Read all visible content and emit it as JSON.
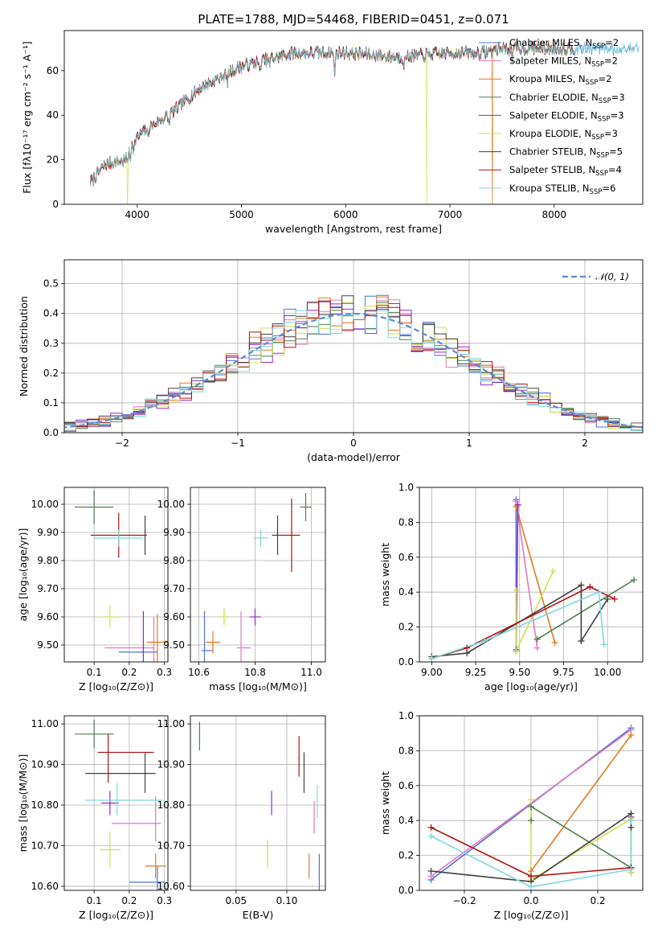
{
  "title": "PLATE=1788, MJD=54468, FIBERID=0451, z=0.071",
  "models": [
    {
      "name": "Chabrier MILES",
      "n_ssp": 2,
      "color": "#4a72d6"
    },
    {
      "name": "Salpeter MILES",
      "n_ssp": 2,
      "color": "#e377c2"
    },
    {
      "name": "Kroupa MILES",
      "n_ssp": 2,
      "color": "#e07b1e"
    },
    {
      "name": "Chabrier ELODIE",
      "n_ssp": 3,
      "color": "#4f7f4f"
    },
    {
      "name": "Salpeter ELODIE",
      "n_ssp": 3,
      "color": "#8e2bd1"
    },
    {
      "name": "Kroupa ELODIE",
      "n_ssp": 3,
      "color": "#cfe050"
    },
    {
      "name": "Chabrier STELIB",
      "n_ssp": 5,
      "color": "#404040"
    },
    {
      "name": "Salpeter STELIB",
      "n_ssp": 4,
      "color": "#b01010"
    },
    {
      "name": "Kroupa STELIB",
      "n_ssp": 6,
      "color": "#7fd8dd"
    }
  ],
  "legend_labels": [
    {
      "prefix": "Chabrier MILES, N",
      "sub": "SSP",
      "suffix": "=2"
    },
    {
      "prefix": "Salpeter MILES, N",
      "sub": "SSP",
      "suffix": "=2"
    },
    {
      "prefix": "Kroupa MILES, N",
      "sub": "SSP",
      "suffix": "=2"
    },
    {
      "prefix": "Chabrier ELODIE, N",
      "sub": "SSP",
      "suffix": "=3"
    },
    {
      "prefix": "Salpeter ELODIE, N",
      "sub": "SSP",
      "suffix": "=3"
    },
    {
      "prefix": "Kroupa ELODIE, N",
      "sub": "SSP",
      "suffix": "=3"
    },
    {
      "prefix": "Chabrier STELIB, N",
      "sub": "SSP",
      "suffix": "=5"
    },
    {
      "prefix": "Salpeter STELIB, N",
      "sub": "SSP",
      "suffix": "=4"
    },
    {
      "prefix": "Kroupa STELIB, N",
      "sub": "SSP",
      "suffix": "=6"
    }
  ],
  "chart_data": [
    {
      "id": "spectrum",
      "type": "line",
      "xlabel": "wavelength [Angstrom, rest frame]",
      "ylabel": "Flux [fλ10⁻¹⁷ erg cm⁻² s⁻¹ A⁻¹]",
      "xlim": [
        3300,
        8850
      ],
      "ylim": [
        0,
        78
      ],
      "xticks": [
        4000,
        5000,
        6000,
        7000,
        8000
      ],
      "yticks": [
        0,
        20,
        40,
        60
      ],
      "continuum": {
        "x": [
          3550,
          3700,
          3900,
          3950,
          4100,
          4300,
          4600,
          5000,
          5500,
          6000,
          6500,
          7000,
          7300,
          7500
        ],
        "y": [
          10,
          18,
          20,
          28,
          34,
          40,
          52,
          62,
          68,
          68,
          66,
          68,
          68,
          70
        ]
      },
      "glitches": [
        {
          "model": 5,
          "x": 3905
        },
        {
          "model": 5,
          "x": 6775
        },
        {
          "model": 2,
          "x": 7405
        }
      ]
    },
    {
      "id": "residual_hist",
      "type": "bar",
      "xlabel": "(data-model)/error",
      "ylabel": "Normed distribution",
      "xlim": [
        -2.5,
        2.5
      ],
      "ylim": [
        0,
        0.58
      ],
      "xticks": [
        -2,
        -1,
        0,
        1,
        2
      ],
      "yticks": [
        0.0,
        0.1,
        0.2,
        0.3,
        0.4,
        0.5
      ],
      "bin_width": 0.1,
      "reference": {
        "name": "𝒩(0, 1)",
        "mean": 0,
        "sigma": 1,
        "color": "#5b8bd6"
      }
    },
    {
      "id": "age_vs_Z",
      "type": "scatter",
      "xlabel": "Z [log₁₀(Z/Z⊙)]",
      "ylabel": "age  [log₁₀(age/yr)]",
      "xlim": [
        0.015,
        0.31
      ],
      "ylim": [
        9.44,
        10.06
      ],
      "xticks": [
        0.1,
        0.2,
        0.3
      ],
      "yticks": [
        9.5,
        9.6,
        9.7,
        9.8,
        9.9,
        10.0
      ],
      "points": [
        {
          "model": 0,
          "x": 0.225,
          "y": 9.475,
          "xerr": 0.055,
          "yerr": 0
        },
        {
          "model": 1,
          "x": 0.2,
          "y": 9.49,
          "xerr": 0.07,
          "yerr": 0
        },
        {
          "model": 1,
          "x": 0.27,
          "y": 9.5,
          "xerr": 0,
          "yerr": 0.1
        },
        {
          "model": 2,
          "x": 0.28,
          "y": 9.51,
          "xerr": 0.03,
          "yerr": 0.1
        },
        {
          "model": 3,
          "x": 0.1,
          "y": 9.99,
          "xerr": 0.055,
          "yerr": 0.06
        },
        {
          "model": 4,
          "x": 0.24,
          "y": 9.52,
          "xerr": 0,
          "yerr": 0.1
        },
        {
          "model": 5,
          "x": 0.145,
          "y": 9.6,
          "xerr": 0.025,
          "yerr": 0.04
        },
        {
          "model": 6,
          "x": 0.245,
          "y": 9.89,
          "xerr": 0,
          "yerr": 0.07
        },
        {
          "model": 7,
          "x": 0.17,
          "y": 9.89,
          "xerr": 0.08,
          "yerr": 0.08
        },
        {
          "model": 8,
          "x": 0.17,
          "y": 9.88,
          "xerr": 0.07,
          "yerr": 0.03
        }
      ]
    },
    {
      "id": "age_vs_mass",
      "type": "scatter",
      "xlabel": "mass [log₁₀(M/M⊙)]",
      "ylabel": "",
      "xlim": [
        10.57,
        11.05
      ],
      "ylim": [
        9.44,
        10.06
      ],
      "xticks": [
        10.6,
        10.8,
        11.0
      ],
      "yticks": [
        9.5,
        9.6,
        9.7,
        9.8,
        9.9,
        10.0
      ],
      "points": [
        {
          "model": 0,
          "x": 10.62,
          "y": 9.53,
          "xerr": 0,
          "yerr": 0.09
        },
        {
          "model": 0,
          "x": 10.63,
          "y": 9.48,
          "xerr": 0.02,
          "yerr": 0
        },
        {
          "model": 1,
          "x": 10.75,
          "y": 9.53,
          "xerr": 0,
          "yerr": 0.09
        },
        {
          "model": 1,
          "x": 10.76,
          "y": 9.49,
          "xerr": 0.025,
          "yerr": 0
        },
        {
          "model": 2,
          "x": 10.65,
          "y": 9.51,
          "xerr": 0.025,
          "yerr": 0.04
        },
        {
          "model": 3,
          "x": 10.98,
          "y": 9.99,
          "xerr": 0.02,
          "yerr": 0.05
        },
        {
          "model": 4,
          "x": 10.8,
          "y": 9.6,
          "xerr": 0.02,
          "yerr": 0.03
        },
        {
          "model": 5,
          "x": 10.69,
          "y": 9.6,
          "xerr": 0.02,
          "yerr": 0.03
        },
        {
          "model": 6,
          "x": 10.88,
          "y": 9.89,
          "xerr": 0.02,
          "yerr": 0.07
        },
        {
          "model": 7,
          "x": 10.93,
          "y": 9.89,
          "xerr": 0.03,
          "yerr": 0.13
        },
        {
          "model": 8,
          "x": 10.82,
          "y": 9.88,
          "xerr": 0.025,
          "yerr": 0.03
        }
      ]
    },
    {
      "id": "weight_vs_age",
      "type": "line",
      "xlabel": "age  [log₁₀(age/yr)]",
      "ylabel": "mass weight",
      "xlim": [
        8.93,
        10.2
      ],
      "ylim": [
        0,
        1
      ],
      "xticks": [
        9.0,
        9.25,
        9.5,
        9.75,
        10.0
      ],
      "yticks": [
        0.0,
        0.2,
        0.4,
        0.6,
        0.8,
        1.0
      ],
      "series": [
        {
          "model": 0,
          "x": [
            9.48,
            9.48
          ],
          "y": [
            0.93,
            0.07
          ]
        },
        {
          "model": 1,
          "x": [
            9.48,
            9.6
          ],
          "y": [
            0.92,
            0.08
          ]
        },
        {
          "model": 2,
          "x": [
            9.48,
            9.7
          ],
          "y": [
            0.89,
            0.11
          ]
        },
        {
          "model": 3,
          "x": [
            9.6,
            10.15
          ],
          "y": [
            0.13,
            0.47
          ]
        },
        {
          "model": 4,
          "x": [
            9.48,
            9.49
          ],
          "y": [
            0.06,
            0.9
          ]
        },
        {
          "model": 5,
          "x": [
            9.48,
            9.48,
            9.69
          ],
          "y": [
            0.41,
            0.06,
            0.52
          ]
        },
        {
          "model": 6,
          "x": [
            9.0,
            9.2,
            9.85,
            9.85,
            10.0
          ],
          "y": [
            0.03,
            0.05,
            0.44,
            0.12,
            0.36
          ]
        },
        {
          "model": 7,
          "x": [
            9.0,
            9.2,
            9.9,
            10.04
          ],
          "y": [
            0.02,
            0.08,
            0.43,
            0.36
          ]
        },
        {
          "model": 8,
          "x": [
            9.0,
            9.3,
            9.95,
            9.98
          ],
          "y": [
            0.02,
            0.12,
            0.4,
            0.1
          ]
        }
      ]
    },
    {
      "id": "mass_vs_Z",
      "type": "scatter",
      "xlabel": "Z [log₁₀(Z/Z⊙)]",
      "ylabel": "mass [log₁₀(M/M⊙)]",
      "xlim": [
        0.015,
        0.31
      ],
      "ylim": [
        10.59,
        11.02
      ],
      "xticks": [
        0.1,
        0.2,
        0.3
      ],
      "yticks": [
        10.6,
        10.7,
        10.8,
        10.9,
        11.0
      ],
      "points": [
        {
          "model": 0,
          "x": 0.25,
          "y": 10.61,
          "xerr": 0.05,
          "yerr": 0
        },
        {
          "model": 0,
          "x": 0.28,
          "y": 10.62,
          "xerr": 0,
          "yerr": 0.03
        },
        {
          "model": 1,
          "x": 0.22,
          "y": 10.755,
          "xerr": 0.07,
          "yerr": 0
        },
        {
          "model": 1,
          "x": 0.275,
          "y": 10.765,
          "xerr": 0,
          "yerr": 0.055
        },
        {
          "model": 2,
          "x": 0.275,
          "y": 10.65,
          "xerr": 0.03,
          "yerr": 0.03
        },
        {
          "model": 3,
          "x": 0.1,
          "y": 10.975,
          "xerr": 0.055,
          "yerr": 0.035
        },
        {
          "model": 4,
          "x": 0.145,
          "y": 10.805,
          "xerr": 0.025,
          "yerr": 0.03
        },
        {
          "model": 5,
          "x": 0.145,
          "y": 10.69,
          "xerr": 0.03,
          "yerr": 0.045
        },
        {
          "model": 6,
          "x": 0.175,
          "y": 10.878,
          "xerr": 0.1,
          "yerr": 0
        },
        {
          "model": 6,
          "x": 0.245,
          "y": 10.88,
          "xerr": 0,
          "yerr": 0.05
        },
        {
          "model": 7,
          "x": 0.19,
          "y": 10.93,
          "xerr": 0.08,
          "yerr": 0
        },
        {
          "model": 7,
          "x": 0.14,
          "y": 10.915,
          "xerr": 0,
          "yerr": 0.06
        },
        {
          "model": 8,
          "x": 0.185,
          "y": 10.812,
          "xerr": 0.11,
          "yerr": 0
        },
        {
          "model": 8,
          "x": 0.165,
          "y": 10.815,
          "xerr": 0,
          "yerr": 0.04
        }
      ]
    },
    {
      "id": "mass_vs_ebv",
      "type": "scatter",
      "xlabel": "E(B-V)",
      "ylabel": "",
      "xlim": [
        0.005,
        0.138
      ],
      "ylim": [
        10.59,
        11.02
      ],
      "xticks": [
        0.05,
        0.1
      ],
      "yticks": [
        10.6,
        10.7,
        10.8,
        10.9,
        11.0
      ],
      "points": [
        {
          "model": 0,
          "x": 0.132,
          "y": 10.63,
          "xerr": 0,
          "yerr": 0.05
        },
        {
          "model": 1,
          "x": 0.127,
          "y": 10.77,
          "xerr": 0,
          "yerr": 0.04
        },
        {
          "model": 2,
          "x": 0.122,
          "y": 10.65,
          "xerr": 0,
          "yerr": 0.03
        },
        {
          "model": 3,
          "x": 0.014,
          "y": 10.97,
          "xerr": 0,
          "yerr": 0.035
        },
        {
          "model": 4,
          "x": 0.085,
          "y": 10.805,
          "xerr": 0,
          "yerr": 0.03
        },
        {
          "model": 5,
          "x": 0.081,
          "y": 10.68,
          "xerr": 0,
          "yerr": 0.035
        },
        {
          "model": 6,
          "x": 0.117,
          "y": 10.88,
          "xerr": 0,
          "yerr": 0.05
        },
        {
          "model": 7,
          "x": 0.112,
          "y": 10.92,
          "xerr": 0,
          "yerr": 0.05
        },
        {
          "model": 8,
          "x": 0.13,
          "y": 10.81,
          "xerr": 0,
          "yerr": 0.04
        }
      ]
    },
    {
      "id": "weight_vs_Z",
      "type": "line",
      "xlabel": "Z [log₁₀(Z/Z⊙)]",
      "ylabel": "mass weight",
      "xlim": [
        -0.335,
        0.335
      ],
      "ylim": [
        0,
        1
      ],
      "xticks": [
        -0.2,
        0.0,
        0.2
      ],
      "yticks": [
        0.0,
        0.2,
        0.4,
        0.6,
        0.8,
        1.0
      ],
      "series": [
        {
          "model": 0,
          "x": [
            -0.3,
            0.3
          ],
          "y": [
            0.06,
            0.93
          ]
        },
        {
          "model": 1,
          "x": [
            -0.3,
            0.3
          ],
          "y": [
            0.08,
            0.92
          ]
        },
        {
          "model": 2,
          "x": [
            0.0,
            0.3
          ],
          "y": [
            0.11,
            0.89
          ]
        },
        {
          "model": 3,
          "x": [
            0.0,
            0.0,
            0.3
          ],
          "y": [
            0.4,
            0.48,
            0.13
          ]
        },
        {
          "model": 4,
          "x": [
            0.3,
            0.3
          ],
          "y": [
            0.42,
            0.1
          ]
        },
        {
          "model": 5,
          "x": [
            0.0,
            0.0,
            0.3,
            0.3
          ],
          "y": [
            0.52,
            0.06,
            0.41,
            0.1
          ]
        },
        {
          "model": 6,
          "x": [
            -0.3,
            0.0,
            0.3,
            0.3
          ],
          "y": [
            0.11,
            0.05,
            0.44,
            0.36
          ]
        },
        {
          "model": 7,
          "x": [
            -0.3,
            0.0,
            0.3
          ],
          "y": [
            0.36,
            0.08,
            0.13
          ]
        },
        {
          "model": 8,
          "x": [
            -0.3,
            0.0,
            0.3,
            0.3
          ],
          "y": [
            0.31,
            0.02,
            0.12,
            0.4
          ]
        }
      ]
    }
  ]
}
